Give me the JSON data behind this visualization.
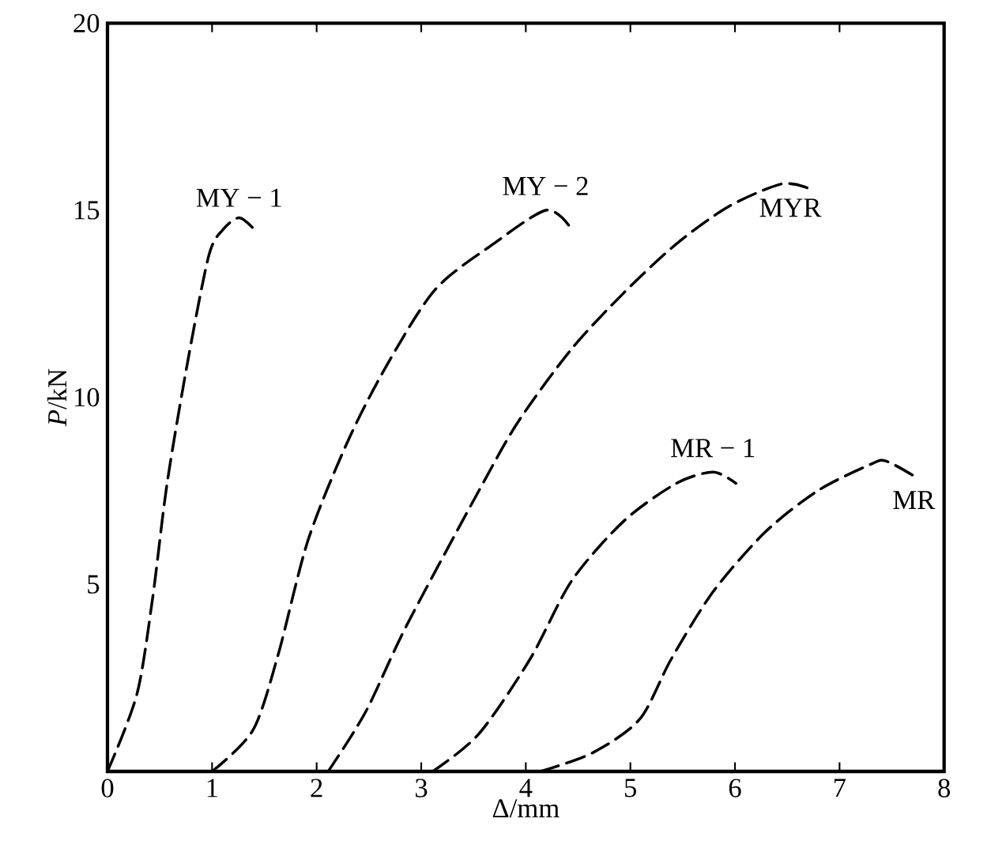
{
  "chart_data": {
    "type": "line",
    "xlabel": "Δ/mm",
    "ylabel": "*P*/kN",
    "xlim": [
      0,
      8
    ],
    "ylim": [
      0,
      20
    ],
    "xticks": [
      0,
      1,
      2,
      3,
      4,
      5,
      6,
      7,
      8
    ],
    "yticks": [
      5,
      10,
      15,
      20
    ],
    "grid": false,
    "line_style": "dashed",
    "marker": "none",
    "series": [
      {
        "name": "MY − 1",
        "color": "#000000",
        "x": [
          0,
          0.28,
          0.43,
          0.57,
          0.77,
          0.97,
          1.11,
          1.26,
          1.4
        ],
        "values": [
          0,
          2.05,
          4.6,
          7.7,
          11,
          13.8,
          14.5,
          14.8,
          14.5
        ]
      },
      {
        "name": "MY − 2",
        "color": "#000000",
        "x": [
          1,
          1.39,
          1.63,
          1.92,
          2.31,
          2.7,
          3.14,
          3.69,
          4.19,
          4.41
        ],
        "values": [
          0,
          1.1,
          3.1,
          6.2,
          8.9,
          11,
          12.9,
          14.1,
          15.0,
          14.6
        ]
      },
      {
        "name": "MYR",
        "color": "#000000",
        "x": [
          2.11,
          2.47,
          2.86,
          3.59,
          3.94,
          4.44,
          4.94,
          5.44,
          5.94,
          6.44,
          6.69
        ],
        "values": [
          0,
          1.6,
          3.9,
          7.7,
          9.4,
          11.3,
          12.8,
          14.1,
          15.1,
          15.7,
          15.6
        ]
      },
      {
        "name": "MR − 1",
        "color": "#000000",
        "x": [
          3.11,
          3.55,
          4.04,
          4.44,
          4.94,
          5.44,
          5.79,
          6.01
        ],
        "values": [
          0,
          1,
          3.0,
          5.1,
          6.7,
          7.7,
          8.0,
          7.7
        ]
      },
      {
        "name": "MR",
        "color": "#000000",
        "x": [
          4.14,
          4.64,
          5.09,
          5.39,
          5.79,
          6.29,
          6.79,
          7.29,
          7.44,
          7.71
        ],
        "values": [
          0,
          0.5,
          1.4,
          3.0,
          4.8,
          6.4,
          7.5,
          8.2,
          8.3,
          7.9
        ]
      }
    ]
  }
}
